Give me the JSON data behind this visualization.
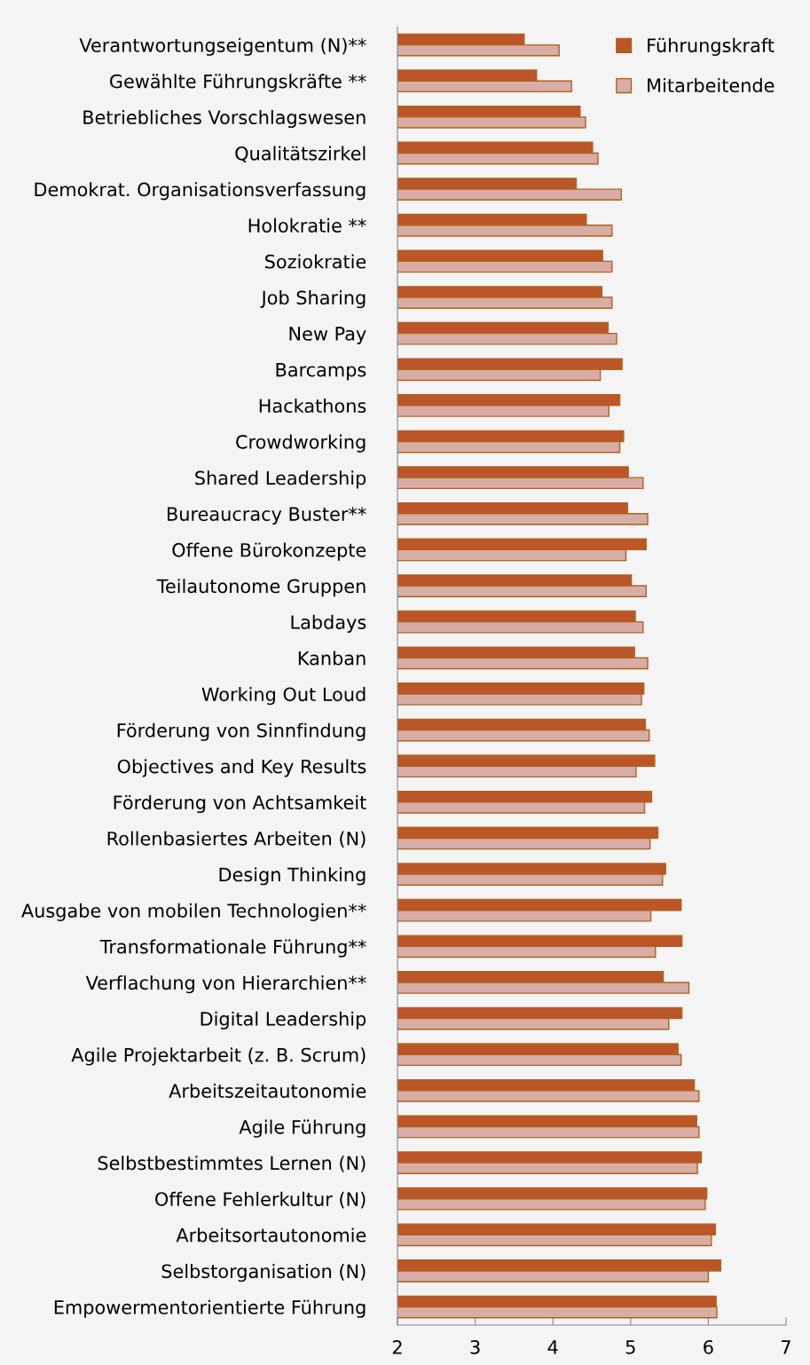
{
  "chart_data": {
    "type": "bar",
    "orientation": "horizontal",
    "categories": [
      "Verantwortungseigentum (N)**",
      "Gewählte Führungskräfte **",
      "Betriebliches Vorschlagswesen",
      "Qualitätszirkel",
      "Demokrat. Organisationsverfassung",
      "Holokratie **",
      "Soziokratie",
      "Job Sharing",
      "New Pay",
      "Barcamps",
      "Hackathons",
      "Crowdworking",
      "Shared Leadership",
      "Bureaucracy Buster**",
      "Offene Bürokonzepte",
      "Teilautonome Gruppen",
      "Labdays",
      "Kanban",
      "Working Out Loud",
      "Förderung von Sinnfindung",
      "Objectives and Key Results",
      "Förderung von Achtsamkeit",
      "Rollenbasiertes Arbeiten (N)",
      "Design Thinking",
      "Ausgabe von mobilen Technologien**",
      "Transformationale Führung**",
      "Verflachung von Hierarchien**",
      "Digital Leadership",
      "Agile Projektarbeit (z. B. Scrum)",
      "Arbeitszeitautonomie",
      "Agile Führung",
      "Selbstbestimmtes Lernen (N)",
      "Offene Fehlerkultur (N)",
      "Arbeitsortautonomie",
      "Selbstorganisation (N)",
      "Empowermentorientierte Führung"
    ],
    "series": [
      {
        "name": "Führungskraft",
        "color": "#bb5628",
        "values": [
          3.63,
          3.79,
          4.35,
          4.51,
          4.3,
          4.43,
          4.64,
          4.63,
          4.71,
          4.89,
          4.86,
          4.91,
          4.97,
          4.96,
          5.2,
          5.01,
          5.06,
          5.05,
          5.17,
          5.19,
          5.31,
          5.27,
          5.35,
          5.45,
          5.65,
          5.66,
          5.42,
          5.66,
          5.61,
          5.82,
          5.85,
          5.91,
          5.98,
          6.09,
          6.16,
          6.1
        ]
      },
      {
        "name": "Mitarbeitende",
        "color": "#d8ada5",
        "values": [
          4.08,
          4.24,
          4.42,
          4.58,
          4.88,
          4.76,
          4.76,
          4.76,
          4.82,
          4.61,
          4.72,
          4.86,
          5.16,
          5.22,
          4.94,
          5.2,
          5.16,
          5.22,
          5.14,
          5.24,
          5.07,
          5.18,
          5.25,
          5.41,
          5.26,
          5.32,
          5.75,
          5.49,
          5.65,
          5.88,
          5.88,
          5.86,
          5.96,
          6.04,
          6.0,
          6.11
        ]
      }
    ],
    "xlim": [
      2,
      7
    ],
    "xticks": [
      2,
      3,
      4,
      5,
      6,
      7
    ],
    "grid": false,
    "legend": "top right"
  }
}
